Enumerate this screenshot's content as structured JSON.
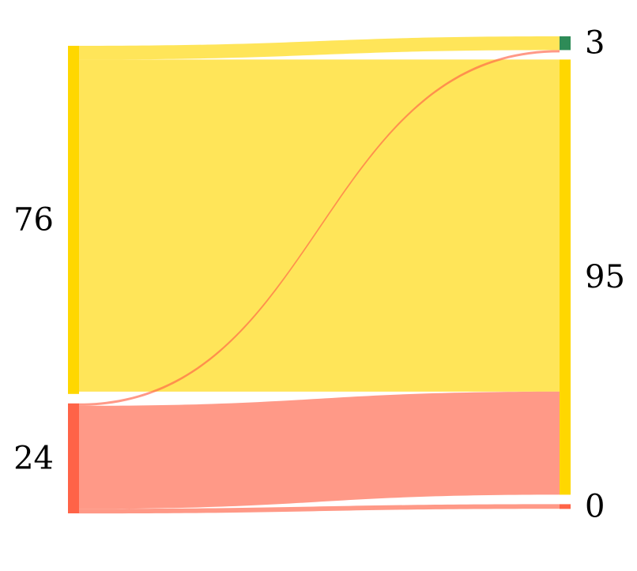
{
  "chart_data": {
    "type": "sankey",
    "title": "",
    "source_nodes": [
      {
        "id": "s76",
        "label": "76",
        "value": 76,
        "color": "#FFD700"
      },
      {
        "id": "s24",
        "label": "24",
        "value": 24,
        "color": "#FF6347"
      }
    ],
    "target_nodes": [
      {
        "id": "t3",
        "label": "3",
        "value": 3,
        "color": "#2E8B57"
      },
      {
        "id": "t95",
        "label": "95",
        "value": 95,
        "color": "#FFD700"
      },
      {
        "id": "t0",
        "label": "0",
        "value": 0,
        "color": "#FF6347"
      }
    ],
    "links": [
      {
        "source": "s76",
        "target": "t3",
        "value": 3,
        "color": "#FFD700"
      },
      {
        "source": "s76",
        "target": "t95",
        "value": 72.5,
        "color": "#FFD700"
      },
      {
        "source": "s24",
        "target": "t3",
        "value": 0.5,
        "color": "#FF6347"
      },
      {
        "source": "s24",
        "target": "t95",
        "value": 22.5,
        "color": "#FF6347"
      },
      {
        "source": "s24",
        "target": "t0",
        "value": 1,
        "color": "#FF6347"
      }
    ]
  }
}
